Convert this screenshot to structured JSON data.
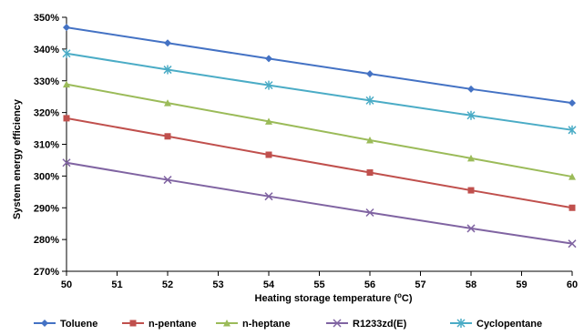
{
  "chart_data": {
    "type": "line",
    "title": "",
    "xlabel": "Heating storage temperature (",
    "xlabel_sup": "o",
    "xlabel_end": "C)",
    "ylabel": "System energy efficiency",
    "x": [
      50,
      52,
      54,
      56,
      58,
      60
    ],
    "xlim": [
      50,
      60
    ],
    "x_ticks": [
      50,
      51,
      52,
      53,
      54,
      55,
      56,
      57,
      58,
      59,
      60
    ],
    "ylim": [
      270,
      350
    ],
    "y_ticks": [
      270,
      280,
      290,
      300,
      310,
      320,
      330,
      340,
      350
    ],
    "y_tick_suffix": "%",
    "grid": false,
    "legend_position": "bottom",
    "series": [
      {
        "name": "Toluene",
        "color": "#4472C4",
        "marker": "diamond",
        "values": [
          346.8,
          341.9,
          337.0,
          332.2,
          327.4,
          323.0
        ]
      },
      {
        "name": "n-pentane",
        "color": "#C0504D",
        "marker": "square",
        "values": [
          318.2,
          312.5,
          306.7,
          301.1,
          295.5,
          290.0
        ]
      },
      {
        "name": "n-heptane",
        "color": "#9BBB59",
        "marker": "triangle",
        "values": [
          328.9,
          323.0,
          317.2,
          311.3,
          305.6,
          299.8
        ]
      },
      {
        "name": "R1233zd(E)",
        "color": "#8064A2",
        "marker": "x",
        "values": [
          304.2,
          298.8,
          293.6,
          288.5,
          283.5,
          278.7
        ]
      },
      {
        "name": "Cyclopentane",
        "color": "#4BACC6",
        "marker": "star",
        "values": [
          338.6,
          333.5,
          328.6,
          323.8,
          319.1,
          314.5
        ]
      }
    ]
  }
}
